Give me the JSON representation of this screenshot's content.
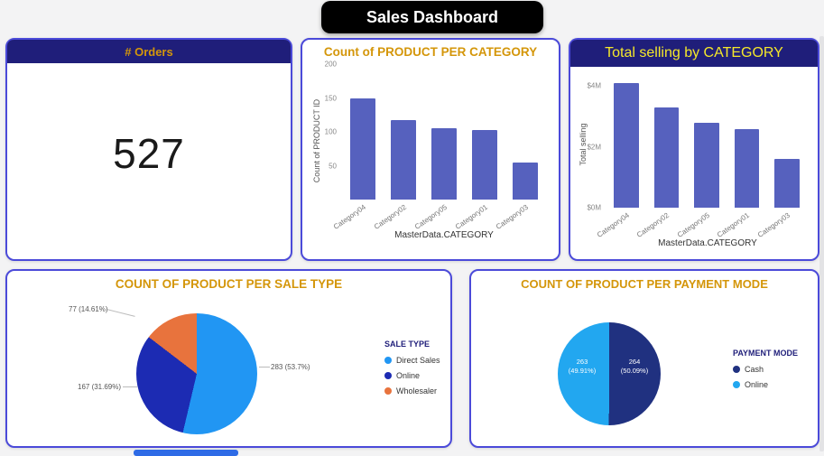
{
  "page": {
    "title": "Sales Dashboard"
  },
  "colors": {
    "navy_header": "#1f1e7a",
    "gold_title_text": "#d4960a",
    "bright_yellow_text": "#f5e82a",
    "card_border": "#4b4ad9",
    "bar_color": "#5661be"
  },
  "orders": {
    "header": "# Orders",
    "value": "527"
  },
  "chart_data": [
    {
      "type": "bar",
      "title": "Count of PRODUCT PER CATEGORY",
      "ylabel": "Count of PRODUCT ID",
      "xlabel": "MasterData.CATEGORY",
      "categories": [
        "Category04",
        "Category02",
        "Category05",
        "Category01",
        "Category03"
      ],
      "values": [
        150,
        118,
        105,
        103,
        55
      ],
      "ylim": [
        0,
        200
      ],
      "yticks": [
        {
          "label": "200",
          "value": 200
        },
        {
          "label": "150",
          "value": 150
        },
        {
          "label": "100",
          "value": 100
        },
        {
          "label": "50",
          "value": 50
        }
      ],
      "bar_color": "#5661be",
      "grid": false,
      "legend_position": "none"
    },
    {
      "type": "bar",
      "title": "Total selling by CATEGORY",
      "ylabel": "Total selling",
      "xlabel": "MasterData.CATEGORY",
      "categories": [
        "Category04",
        "Category02",
        "Category05",
        "Category01",
        "Category03"
      ],
      "values": [
        4.1,
        3.3,
        2.8,
        2.6,
        1.6
      ],
      "value_unit": "M",
      "ylim": [
        0,
        4.4
      ],
      "yticks": [
        {
          "label": "$4M",
          "value": 4
        },
        {
          "label": "$2M",
          "value": 2
        },
        {
          "label": "$0M",
          "value": 0
        }
      ],
      "bar_color": "#5661be",
      "grid": false,
      "legend_position": "none"
    },
    {
      "type": "pie",
      "title": "COUNT OF PRODUCT PER SALE TYPE",
      "legend_title": "SALE TYPE",
      "legend_position": "right",
      "slices": [
        {
          "label": "Direct Sales",
          "value": 283,
          "pct": 53.7,
          "color": "#2196f3",
          "display": "283 (53.7%)"
        },
        {
          "label": "Online",
          "value": 167,
          "pct": 31.69,
          "color": "#1c2bb3",
          "display": "167 (31.69%)"
        },
        {
          "label": "Wholesaler",
          "value": 77,
          "pct": 14.61,
          "color": "#e8733d",
          "display": "77 (14.61%)"
        }
      ]
    },
    {
      "type": "pie",
      "title": "COUNT OF PRODUCT PER PAYMENT MODE",
      "legend_title": "PAYMENT MODE",
      "legend_position": "right",
      "slices": [
        {
          "label": "Cash",
          "value": 264,
          "pct": 50.09,
          "color": "#203180",
          "display": "264\n(50.09%)"
        },
        {
          "label": "Online",
          "value": 263,
          "pct": 49.91,
          "color": "#22a7f0",
          "display": "263\n(49.91%)"
        }
      ]
    }
  ]
}
